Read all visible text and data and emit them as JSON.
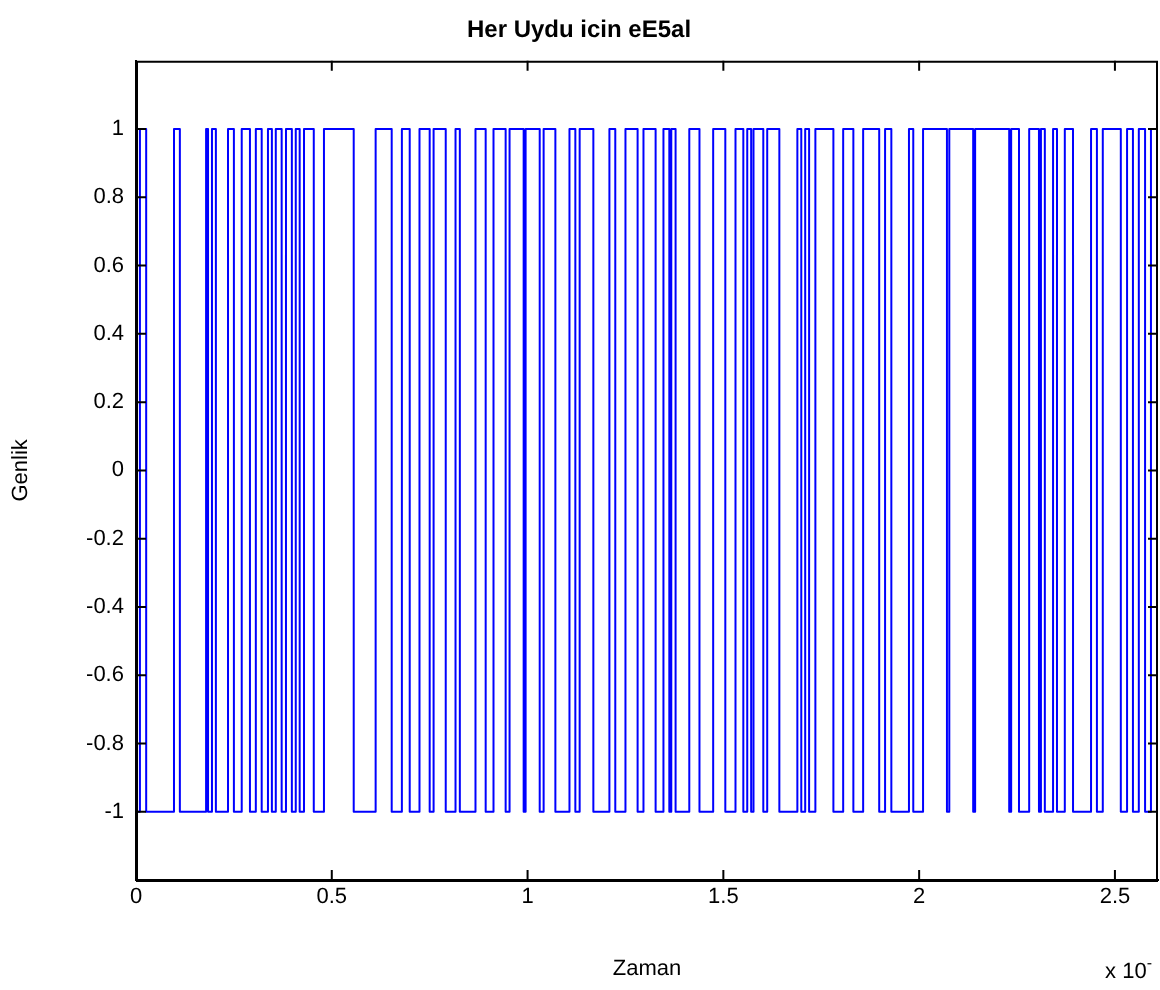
{
  "chart_data": {
    "type": "step",
    "title": "Her Uydu icin eE5al",
    "xlabel": "Zaman",
    "ylabel": "Genlik",
    "annotations": [
      "x 10$^{-}$"
    ],
    "x": [
      0,
      0.01,
      0.026,
      0.097,
      0.112,
      0.179,
      0.184,
      0.194,
      0.204,
      0.235,
      0.25,
      0.27,
      0.291,
      0.306,
      0.321,
      0.337,
      0.347,
      0.357,
      0.372,
      0.383,
      0.398,
      0.408,
      0.418,
      0.429,
      0.454,
      0.48,
      0.556,
      0.612,
      0.653,
      0.679,
      0.699,
      0.724,
      0.75,
      0.76,
      0.791,
      0.816,
      0.827,
      0.867,
      0.893,
      0.913,
      0.944,
      0.954,
      0.99,
      0.995,
      1.031,
      1.041,
      1.071,
      1.107,
      1.122,
      1.133,
      1.168,
      1.209,
      1.224,
      1.25,
      1.281,
      1.296,
      1.327,
      1.347,
      1.362,
      1.367,
      1.378,
      1.413,
      1.439,
      1.474,
      1.505,
      1.531,
      1.551,
      1.561,
      1.571,
      1.577,
      1.602,
      1.612,
      1.643,
      1.689,
      1.699,
      1.709,
      1.719,
      1.735,
      1.781,
      1.806,
      1.832,
      1.857,
      1.898,
      1.913,
      1.929,
      1.974,
      1.985,
      2.01,
      2.071,
      2.077,
      2.138,
      2.143,
      2.23,
      2.235,
      2.255,
      2.281,
      2.306,
      2.311,
      2.321,
      2.342,
      2.352,
      2.372,
      2.393,
      2.439,
      2.454,
      2.469,
      2.515,
      2.531,
      2.546,
      2.561,
      2.577,
      2.592,
      2.61
    ],
    "series": [
      {
        "color": "#0000ff",
        "values": [
          -1,
          1,
          -1,
          1,
          -1,
          1,
          -1,
          1,
          -1,
          1,
          -1,
          1,
          -1,
          1,
          -1,
          1,
          -1,
          1,
          -1,
          1,
          -1,
          1,
          -1,
          1,
          -1,
          1,
          -1,
          1,
          -1,
          1,
          -1,
          1,
          -1,
          1,
          -1,
          1,
          -1,
          1,
          -1,
          1,
          -1,
          1,
          -1,
          1,
          -1,
          1,
          -1,
          1,
          -1,
          1,
          -1,
          1,
          -1,
          1,
          -1,
          1,
          -1,
          1,
          -1,
          1,
          -1,
          1,
          -1,
          1,
          -1,
          1,
          -1,
          1,
          -1,
          1,
          -1,
          1,
          -1,
          1,
          -1,
          1,
          -1,
          1,
          -1,
          1,
          -1,
          1,
          -1,
          1,
          -1,
          1,
          -1,
          1,
          -1,
          1,
          -1,
          1,
          -1,
          1,
          -1,
          1,
          -1,
          1,
          -1,
          1,
          -1,
          1,
          -1,
          1,
          -1,
          1,
          -1,
          1,
          -1,
          1,
          -1,
          1,
          1
        ]
      }
    ],
    "xlim": [
      0,
      2.61
    ],
    "xticks": [
      0,
      0.5,
      1,
      1.5,
      2,
      2.5
    ],
    "ylim": [
      -1.2,
      1.2
    ],
    "yticks": [
      -1,
      -0.8,
      -0.6,
      -0.4,
      -0.2,
      0,
      0.2,
      0.4,
      0.6,
      0.8,
      1
    ],
    "grid": false,
    "legend": false,
    "marker": "none",
    "line_style": "solid"
  }
}
